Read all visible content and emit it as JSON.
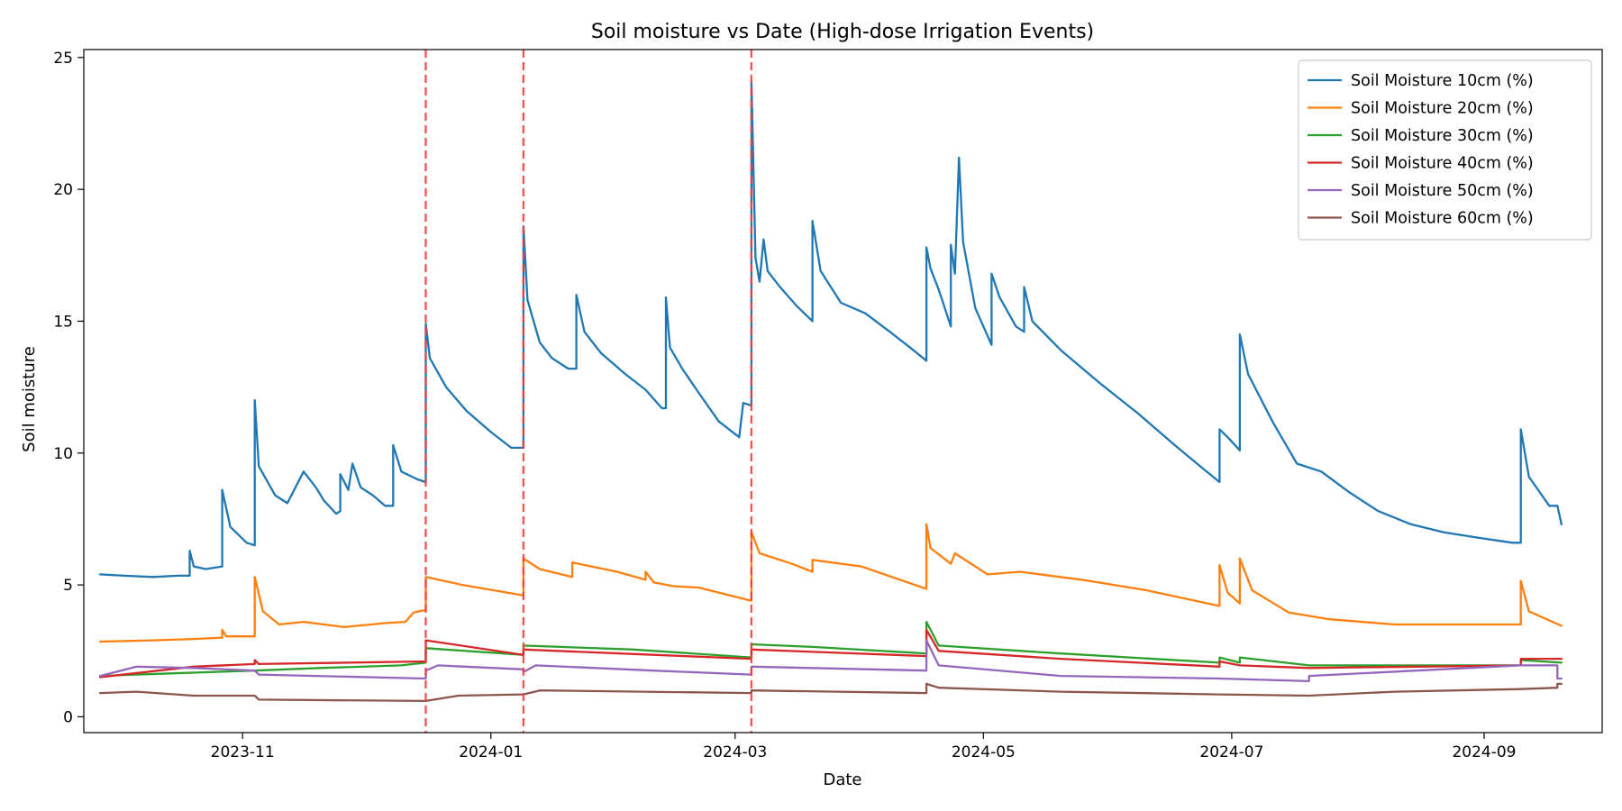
{
  "chart_data": {
    "type": "line",
    "title": "Soil moisture vs Date (High-dose Irrigation Events)",
    "xlabel": "Date",
    "ylabel": "Soil moisture",
    "xlim": [
      "2023-09-23",
      "2024-09-30"
    ],
    "ylim": [
      -0.6,
      25.3
    ],
    "x_ticks": [
      "2023-11",
      "2024-01",
      "2024-03",
      "2024-05",
      "2024-07",
      "2024-09"
    ],
    "x_tick_dates": [
      "2023-11-01",
      "2024-01-01",
      "2024-03-01",
      "2024-05-01",
      "2024-07-01",
      "2024-09-01"
    ],
    "y_ticks": [
      0,
      5,
      10,
      15,
      20,
      25
    ],
    "grid": false,
    "legend_position": "top-right",
    "event_lines": {
      "color": "#ff3b3b",
      "style": "dashed",
      "dates": [
        "2023-12-16",
        "2024-01-09",
        "2024-03-05"
      ]
    },
    "series": [
      {
        "name": "Soil Moisture 10cm (%)",
        "color": "#1f77b4",
        "points": [
          [
            "2023-09-27",
            5.4
          ],
          [
            "2023-10-03",
            5.35
          ],
          [
            "2023-10-10",
            5.3
          ],
          [
            "2023-10-16",
            5.35
          ],
          [
            "2023-10-19",
            5.35
          ],
          [
            "2023-10-19",
            6.3
          ],
          [
            "2023-10-20",
            5.7
          ],
          [
            "2023-10-23",
            5.6
          ],
          [
            "2023-10-27",
            5.7
          ],
          [
            "2023-10-27",
            8.6
          ],
          [
            "2023-10-29",
            7.2
          ],
          [
            "2023-11-02",
            6.6
          ],
          [
            "2023-11-04",
            6.5
          ],
          [
            "2023-11-04",
            12.0
          ],
          [
            "2023-11-05",
            9.5
          ],
          [
            "2023-11-09",
            8.4
          ],
          [
            "2023-11-12",
            8.1
          ],
          [
            "2023-11-16",
            9.3
          ],
          [
            "2023-11-19",
            8.7
          ],
          [
            "2023-11-21",
            8.2
          ],
          [
            "2023-11-24",
            7.7
          ],
          [
            "2023-11-25",
            7.8
          ],
          [
            "2023-11-25",
            9.2
          ],
          [
            "2023-11-27",
            8.6
          ],
          [
            "2023-11-28",
            9.6
          ],
          [
            "2023-11-30",
            8.7
          ],
          [
            "2023-12-03",
            8.4
          ],
          [
            "2023-12-06",
            8.0
          ],
          [
            "2023-12-08",
            8.0
          ],
          [
            "2023-12-08",
            10.3
          ],
          [
            "2023-12-10",
            9.3
          ],
          [
            "2023-12-14",
            9.0
          ],
          [
            "2023-12-16",
            8.9
          ],
          [
            "2023-12-16",
            14.9
          ],
          [
            "2023-12-17",
            13.6
          ],
          [
            "2023-12-21",
            12.5
          ],
          [
            "2023-12-26",
            11.6
          ],
          [
            "2024-01-01",
            10.8
          ],
          [
            "2024-01-06",
            10.2
          ],
          [
            "2024-01-09",
            10.2
          ],
          [
            "2024-01-09",
            18.6
          ],
          [
            "2024-01-10",
            15.8
          ],
          [
            "2024-01-13",
            14.2
          ],
          [
            "2024-01-16",
            13.6
          ],
          [
            "2024-01-20",
            13.2
          ],
          [
            "2024-01-22",
            13.2
          ],
          [
            "2024-01-22",
            16.0
          ],
          [
            "2024-01-24",
            14.6
          ],
          [
            "2024-01-28",
            13.8
          ],
          [
            "2024-02-03",
            13.0
          ],
          [
            "2024-02-08",
            12.4
          ],
          [
            "2024-02-12",
            11.7
          ],
          [
            "2024-02-13",
            11.7
          ],
          [
            "2024-02-13",
            15.9
          ],
          [
            "2024-02-14",
            14.0
          ],
          [
            "2024-02-17",
            13.2
          ],
          [
            "2024-02-21",
            12.3
          ],
          [
            "2024-02-26",
            11.2
          ],
          [
            "2024-03-02",
            10.6
          ],
          [
            "2024-03-03",
            11.9
          ],
          [
            "2024-03-05",
            11.8
          ],
          [
            "2024-03-05",
            24.1
          ],
          [
            "2024-03-06",
            17.4
          ],
          [
            "2024-03-07",
            16.5
          ],
          [
            "2024-03-08",
            18.1
          ],
          [
            "2024-03-09",
            16.9
          ],
          [
            "2024-03-12",
            16.3
          ],
          [
            "2024-03-16",
            15.6
          ],
          [
            "2024-03-20",
            15.0
          ],
          [
            "2024-03-20",
            18.8
          ],
          [
            "2024-03-22",
            16.9
          ],
          [
            "2024-03-27",
            15.7
          ],
          [
            "2024-04-02",
            15.3
          ],
          [
            "2024-04-08",
            14.6
          ],
          [
            "2024-04-13",
            14.0
          ],
          [
            "2024-04-17",
            13.5
          ],
          [
            "2024-04-17",
            17.8
          ],
          [
            "2024-04-18",
            17.0
          ],
          [
            "2024-04-20",
            16.2
          ],
          [
            "2024-04-23",
            14.8
          ],
          [
            "2024-04-23",
            17.9
          ],
          [
            "2024-04-24",
            16.8
          ],
          [
            "2024-04-25",
            21.2
          ],
          [
            "2024-04-26",
            18.0
          ],
          [
            "2024-04-29",
            15.5
          ],
          [
            "2024-05-03",
            14.1
          ],
          [
            "2024-05-03",
            16.8
          ],
          [
            "2024-05-05",
            15.9
          ],
          [
            "2024-05-09",
            14.8
          ],
          [
            "2024-05-11",
            14.6
          ],
          [
            "2024-05-11",
            16.3
          ],
          [
            "2024-05-13",
            15.0
          ],
          [
            "2024-05-20",
            13.9
          ],
          [
            "2024-05-30",
            12.6
          ],
          [
            "2024-06-08",
            11.5
          ],
          [
            "2024-06-17",
            10.3
          ],
          [
            "2024-06-24",
            9.4
          ],
          [
            "2024-06-28",
            8.9
          ],
          [
            "2024-06-28",
            10.9
          ],
          [
            "2024-06-30",
            10.6
          ],
          [
            "2024-07-03",
            10.1
          ],
          [
            "2024-07-03",
            14.5
          ],
          [
            "2024-07-05",
            13.0
          ],
          [
            "2024-07-11",
            11.2
          ],
          [
            "2024-07-17",
            9.6
          ],
          [
            "2024-07-23",
            9.3
          ],
          [
            "2024-07-30",
            8.5
          ],
          [
            "2024-08-06",
            7.8
          ],
          [
            "2024-08-14",
            7.3
          ],
          [
            "2024-08-22",
            7.0
          ],
          [
            "2024-08-30",
            6.8
          ],
          [
            "2024-09-08",
            6.6
          ],
          [
            "2024-09-10",
            6.6
          ],
          [
            "2024-09-10",
            10.9
          ],
          [
            "2024-09-12",
            9.1
          ],
          [
            "2024-09-17",
            8.0
          ],
          [
            "2024-09-19",
            8.0
          ],
          [
            "2024-09-20",
            7.3
          ]
        ]
      },
      {
        "name": "Soil Moisture 20cm (%)",
        "color": "#ff7f0e",
        "points": [
          [
            "2023-09-27",
            2.85
          ],
          [
            "2023-10-10",
            2.9
          ],
          [
            "2023-10-20",
            2.95
          ],
          [
            "2023-10-27",
            3.0
          ],
          [
            "2023-10-27",
            3.3
          ],
          [
            "2023-10-28",
            3.05
          ],
          [
            "2023-11-04",
            3.05
          ],
          [
            "2023-11-04",
            5.3
          ],
          [
            "2023-11-06",
            4.0
          ],
          [
            "2023-11-10",
            3.5
          ],
          [
            "2023-11-16",
            3.6
          ],
          [
            "2023-11-26",
            3.4
          ],
          [
            "2023-12-06",
            3.55
          ],
          [
            "2023-12-11",
            3.6
          ],
          [
            "2023-12-13",
            3.95
          ],
          [
            "2023-12-16",
            4.05
          ],
          [
            "2023-12-16",
            5.3
          ],
          [
            "2023-12-25",
            5.0
          ],
          [
            "2024-01-09",
            4.6
          ],
          [
            "2024-01-09",
            6.0
          ],
          [
            "2024-01-13",
            5.6
          ],
          [
            "2024-01-21",
            5.3
          ],
          [
            "2024-01-21",
            5.85
          ],
          [
            "2024-02-01",
            5.5
          ],
          [
            "2024-02-08",
            5.2
          ],
          [
            "2024-02-08",
            5.5
          ],
          [
            "2024-02-10",
            5.1
          ],
          [
            "2024-02-15",
            4.95
          ],
          [
            "2024-02-21",
            4.9
          ],
          [
            "2024-03-05",
            4.4
          ],
          [
            "2024-03-05",
            7.0
          ],
          [
            "2024-03-07",
            6.2
          ],
          [
            "2024-03-15",
            5.8
          ],
          [
            "2024-03-20",
            5.5
          ],
          [
            "2024-03-20",
            5.95
          ],
          [
            "2024-04-01",
            5.7
          ],
          [
            "2024-04-17",
            4.85
          ],
          [
            "2024-04-17",
            7.3
          ],
          [
            "2024-04-18",
            6.4
          ],
          [
            "2024-04-23",
            5.8
          ],
          [
            "2024-04-24",
            6.2
          ],
          [
            "2024-05-02",
            5.4
          ],
          [
            "2024-05-10",
            5.5
          ],
          [
            "2024-05-25",
            5.2
          ],
          [
            "2024-06-10",
            4.8
          ],
          [
            "2024-06-28",
            4.2
          ],
          [
            "2024-06-28",
            5.75
          ],
          [
            "2024-06-30",
            4.7
          ],
          [
            "2024-07-03",
            4.3
          ],
          [
            "2024-07-03",
            6.0
          ],
          [
            "2024-07-06",
            4.8
          ],
          [
            "2024-07-15",
            3.95
          ],
          [
            "2024-07-25",
            3.7
          ],
          [
            "2024-08-10",
            3.5
          ],
          [
            "2024-09-10",
            3.5
          ],
          [
            "2024-09-10",
            5.15
          ],
          [
            "2024-09-12",
            4.0
          ],
          [
            "2024-09-20",
            3.45
          ]
        ]
      },
      {
        "name": "Soil Moisture 30cm (%)",
        "color": "#2ca02c",
        "points": [
          [
            "2023-09-27",
            1.55
          ],
          [
            "2023-10-15",
            1.65
          ],
          [
            "2023-11-04",
            1.75
          ],
          [
            "2023-11-20",
            1.85
          ],
          [
            "2023-12-10",
            1.95
          ],
          [
            "2023-12-16",
            2.05
          ],
          [
            "2023-12-16",
            2.6
          ],
          [
            "2024-01-09",
            2.35
          ],
          [
            "2024-01-09",
            2.7
          ],
          [
            "2024-02-05",
            2.55
          ],
          [
            "2024-03-05",
            2.25
          ],
          [
            "2024-03-05",
            2.75
          ],
          [
            "2024-03-20",
            2.65
          ],
          [
            "2024-04-17",
            2.4
          ],
          [
            "2024-04-17",
            3.6
          ],
          [
            "2024-04-20",
            2.7
          ],
          [
            "2024-05-20",
            2.4
          ],
          [
            "2024-06-28",
            2.05
          ],
          [
            "2024-06-28",
            2.25
          ],
          [
            "2024-07-03",
            2.05
          ],
          [
            "2024-07-03",
            2.25
          ],
          [
            "2024-07-20",
            1.95
          ],
          [
            "2024-09-10",
            1.95
          ],
          [
            "2024-09-10",
            2.15
          ],
          [
            "2024-09-20",
            2.05
          ]
        ]
      },
      {
        "name": "Soil Moisture 40cm (%)",
        "color": "#d62728",
        "points": [
          [
            "2023-09-27",
            1.5
          ],
          [
            "2023-10-20",
            1.9
          ],
          [
            "2023-11-04",
            2.0
          ],
          [
            "2023-11-04",
            2.15
          ],
          [
            "2023-11-05",
            2.0
          ],
          [
            "2023-12-16",
            2.1
          ],
          [
            "2023-12-16",
            2.9
          ],
          [
            "2024-01-09",
            2.35
          ],
          [
            "2024-01-09",
            2.55
          ],
          [
            "2024-02-10",
            2.35
          ],
          [
            "2024-03-05",
            2.2
          ],
          [
            "2024-03-05",
            2.55
          ],
          [
            "2024-04-17",
            2.3
          ],
          [
            "2024-04-17",
            3.3
          ],
          [
            "2024-04-20",
            2.5
          ],
          [
            "2024-05-20",
            2.2
          ],
          [
            "2024-06-28",
            1.9
          ],
          [
            "2024-06-28",
            2.1
          ],
          [
            "2024-07-03",
            1.95
          ],
          [
            "2024-07-20",
            1.85
          ],
          [
            "2024-09-10",
            1.95
          ],
          [
            "2024-09-10",
            2.2
          ],
          [
            "2024-09-20",
            2.2
          ]
        ]
      },
      {
        "name": "Soil Moisture 50cm (%)",
        "color": "#9467bd",
        "points": [
          [
            "2023-09-27",
            1.55
          ],
          [
            "2023-10-06",
            1.9
          ],
          [
            "2023-10-20",
            1.85
          ],
          [
            "2023-11-04",
            1.75
          ],
          [
            "2023-11-05",
            1.6
          ],
          [
            "2023-12-16",
            1.45
          ],
          [
            "2023-12-16",
            1.75
          ],
          [
            "2023-12-19",
            1.95
          ],
          [
            "2024-01-09",
            1.8
          ],
          [
            "2024-01-09",
            1.7
          ],
          [
            "2024-01-12",
            1.95
          ],
          [
            "2024-02-10",
            1.75
          ],
          [
            "2024-03-05",
            1.6
          ],
          [
            "2024-03-05",
            1.9
          ],
          [
            "2024-04-17",
            1.75
          ],
          [
            "2024-04-17",
            2.9
          ],
          [
            "2024-04-20",
            1.95
          ],
          [
            "2024-05-20",
            1.55
          ],
          [
            "2024-06-28",
            1.45
          ],
          [
            "2024-07-20",
            1.35
          ],
          [
            "2024-07-20",
            1.55
          ],
          [
            "2024-09-10",
            1.95
          ],
          [
            "2024-09-19",
            1.95
          ],
          [
            "2024-09-19",
            1.45
          ],
          [
            "2024-09-20",
            1.45
          ]
        ]
      },
      {
        "name": "Soil Moisture 60cm (%)",
        "color": "#8c564b",
        "points": [
          [
            "2023-09-27",
            0.9
          ],
          [
            "2023-10-06",
            0.95
          ],
          [
            "2023-10-20",
            0.8
          ],
          [
            "2023-11-04",
            0.8
          ],
          [
            "2023-11-05",
            0.65
          ],
          [
            "2023-12-16",
            0.6
          ],
          [
            "2023-12-24",
            0.8
          ],
          [
            "2024-01-09",
            0.85
          ],
          [
            "2024-01-13",
            1.0
          ],
          [
            "2024-03-05",
            0.9
          ],
          [
            "2024-03-05",
            1.0
          ],
          [
            "2024-04-17",
            0.9
          ],
          [
            "2024-04-17",
            1.25
          ],
          [
            "2024-04-20",
            1.1
          ],
          [
            "2024-05-20",
            0.95
          ],
          [
            "2024-06-28",
            0.85
          ],
          [
            "2024-07-20",
            0.8
          ],
          [
            "2024-08-10",
            0.95
          ],
          [
            "2024-09-10",
            1.05
          ],
          [
            "2024-09-19",
            1.1
          ],
          [
            "2024-09-19",
            1.25
          ],
          [
            "2024-09-20",
            1.25
          ]
        ]
      }
    ]
  }
}
